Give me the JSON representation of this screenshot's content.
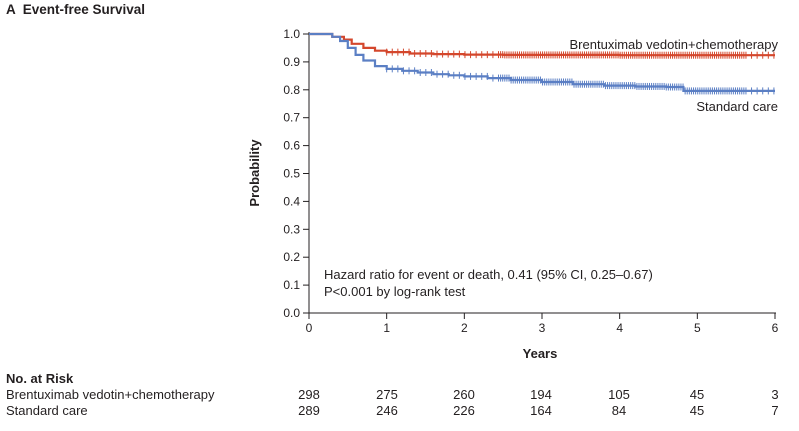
{
  "panel": {
    "letter": "A",
    "title": "Event-free Survival"
  },
  "chart_data": {
    "type": "line",
    "title": "Event-free Survival",
    "xlabel": "Years",
    "ylabel": "Probability",
    "xlim": [
      0,
      6
    ],
    "ylim": [
      0.0,
      1.0
    ],
    "x_ticks": [
      "0",
      "1",
      "2",
      "3",
      "4",
      "5",
      "6"
    ],
    "y_ticks": [
      "0.0",
      "0.1",
      "0.2",
      "0.3",
      "0.4",
      "0.5",
      "0.6",
      "0.7",
      "0.8",
      "0.9",
      "1.0"
    ],
    "grid": false,
    "annotation": [
      "Hazard ratio for event or death, 0.41 (95% CI, 0.25–0.67)",
      "P<0.001 by log-rank test"
    ],
    "series": [
      {
        "name": "Brentuximab vedotin+chemotherapy",
        "color": "#d4472c",
        "x": [
          0,
          0.3,
          0.45,
          0.55,
          0.7,
          0.85,
          1.0,
          1.3,
          1.6,
          2.0,
          2.5,
          3.0,
          3.5,
          4.0,
          4.5,
          5.0,
          5.5,
          6.0
        ],
        "y": [
          1.0,
          0.99,
          0.98,
          0.965,
          0.95,
          0.94,
          0.935,
          0.93,
          0.928,
          0.926,
          0.925,
          0.925,
          0.925,
          0.924,
          0.924,
          0.924,
          0.924,
          0.924
        ]
      },
      {
        "name": "Standard care",
        "color": "#5b7fc4",
        "x": [
          0,
          0.3,
          0.4,
          0.5,
          0.6,
          0.7,
          0.85,
          1.0,
          1.2,
          1.4,
          1.6,
          1.8,
          2.0,
          2.3,
          2.6,
          3.0,
          3.4,
          3.8,
          4.2,
          4.6,
          4.8,
          4.82,
          5.0,
          5.5,
          6.0
        ],
        "y": [
          1.0,
          0.99,
          0.975,
          0.95,
          0.925,
          0.905,
          0.885,
          0.875,
          0.868,
          0.862,
          0.856,
          0.852,
          0.848,
          0.842,
          0.835,
          0.828,
          0.82,
          0.815,
          0.812,
          0.81,
          0.81,
          0.796,
          0.796,
          0.796,
          0.796
        ]
      }
    ]
  },
  "risk_table": {
    "heading": "No. at Risk",
    "rows": [
      {
        "label": "Brentuximab vedotin+chemotherapy",
        "values": [
          "298",
          "275",
          "260",
          "194",
          "105",
          "45",
          "3"
        ]
      },
      {
        "label": "Standard care",
        "values": [
          "289",
          "246",
          "226",
          "164",
          "84",
          "45",
          "7"
        ]
      }
    ]
  }
}
